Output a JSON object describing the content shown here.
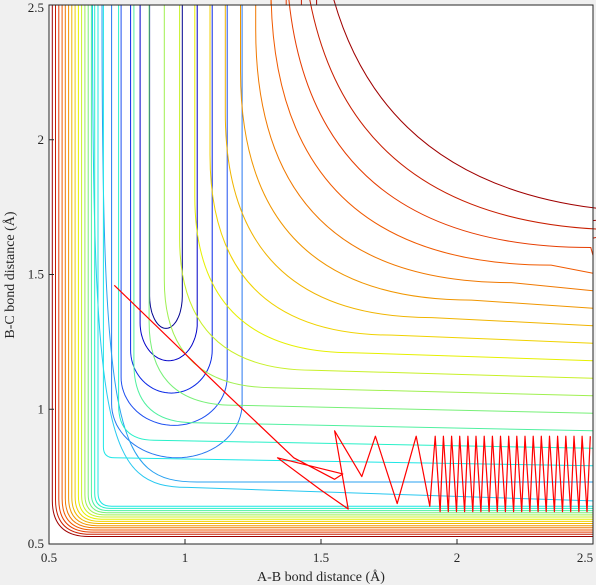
{
  "chart_data": {
    "type": "contour",
    "title": "",
    "xlabel": "A-B bond distance (Å)",
    "ylabel": "B-C bond distance (Å)",
    "xlim": [
      0.5,
      2.5
    ],
    "ylim": [
      0.5,
      2.5
    ],
    "xticks": [
      "0.5",
      "1",
      "1.5",
      "2",
      "2.5"
    ],
    "yticks": [
      "0.5",
      "1",
      "1.5",
      "2",
      "2.5"
    ],
    "grid": false,
    "legend": "none",
    "colormap": "jet",
    "contour_levels": 22,
    "contour_colors": [
      "#00008f",
      "#0000c8",
      "#0a28e6",
      "#1e50f0",
      "#2878f0",
      "#28a0f0",
      "#28c8f0",
      "#1ee6e6",
      "#28f0c8",
      "#50f0a0",
      "#78f078",
      "#a0f050",
      "#c8f028",
      "#e6f000",
      "#f0d200",
      "#f0b400",
      "#f09600",
      "#f07800",
      "#f05a00",
      "#e63c00",
      "#c81e00",
      "#a00000"
    ],
    "trajectory": {
      "color": "#ff0000",
      "start": [
        0.74,
        1.46
      ],
      "description_points": [
        [
          0.74,
          1.46
        ],
        [
          1.16,
          1.05
        ],
        [
          1.4,
          0.82
        ],
        [
          1.55,
          0.74
        ],
        [
          1.58,
          0.76
        ],
        [
          1.34,
          0.82
        ],
        [
          1.5,
          0.7
        ],
        [
          1.6,
          0.63
        ],
        [
          1.55,
          0.92
        ],
        [
          1.65,
          0.75
        ],
        [
          1.7,
          0.9
        ],
        [
          1.78,
          0.65
        ],
        [
          1.85,
          0.9
        ],
        [
          1.9,
          0.64
        ]
      ],
      "oscillation_region": {
        "x": [
          1.6,
          2.5
        ],
        "y_min": 0.62,
        "y_max": 0.9
      }
    }
  }
}
